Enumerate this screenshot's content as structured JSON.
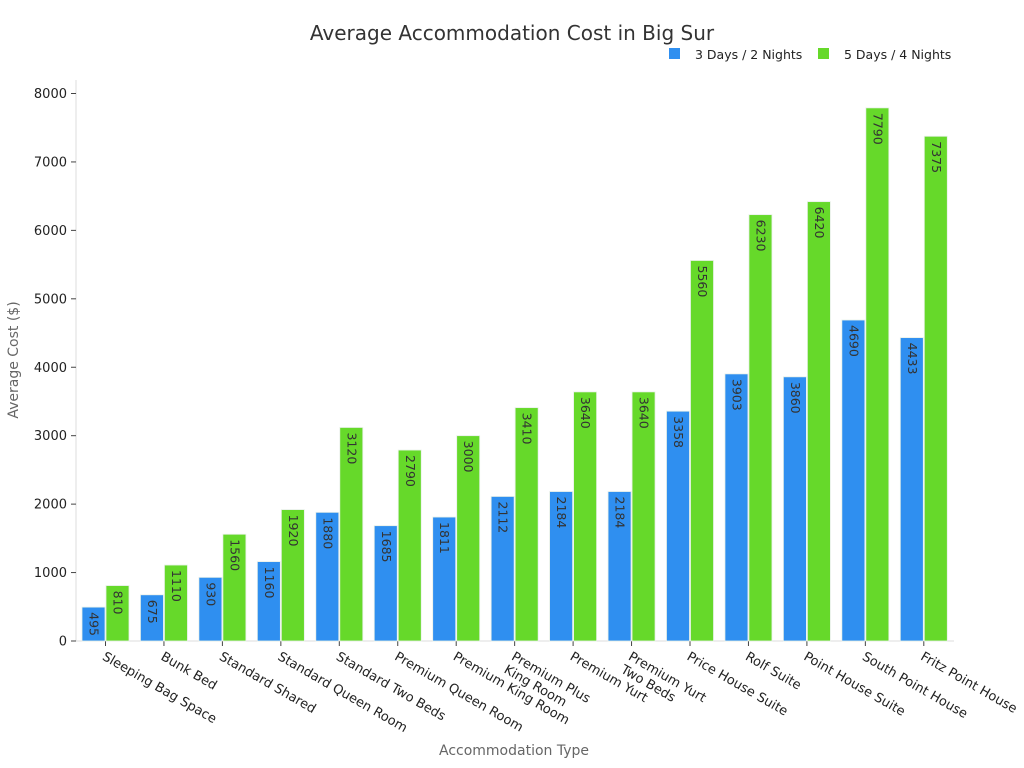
{
  "chart_data": {
    "type": "bar",
    "title": "Average Accommodation Cost in Big Sur",
    "xlabel": "Accommodation Type",
    "ylabel": "Average Cost ($)",
    "ylim": [
      0,
      8000
    ],
    "yticks": [
      0,
      1000,
      2000,
      3000,
      4000,
      5000,
      6000,
      7000,
      8000
    ],
    "grid": false,
    "legend_position": "top-right",
    "categories": [
      "Sleeping Bag Space",
      "Bunk Bed",
      "Standard Shared",
      "Standard Queen Room",
      "Standard Two Beds",
      "Premium Queen Room",
      "Premium King Room",
      "Premium Plus\nKing Room",
      "Premium Yurt",
      "Premium Yurt\nTwo Beds",
      "Price House Suite",
      "Rolf Suite",
      "Point House Suite",
      "South Point House",
      "Fritz Point House"
    ],
    "series": [
      {
        "name": "3 Days / 2 Nights",
        "color": "#2f8ff0",
        "values": [
          495,
          675,
          930,
          1160,
          1880,
          1685,
          1811,
          2112,
          2184,
          2184,
          3358,
          3903,
          3860,
          4690,
          4433
        ]
      },
      {
        "name": "5 Days / 4 Nights",
        "color": "#66d92a",
        "values": [
          810,
          1110,
          1560,
          1920,
          3120,
          2790,
          3000,
          3410,
          3640,
          3640,
          5560,
          6230,
          6420,
          7790,
          7375
        ]
      }
    ]
  }
}
